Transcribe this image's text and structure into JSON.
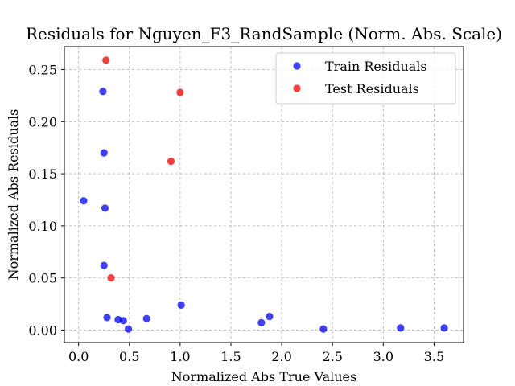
{
  "chart_data": {
    "type": "scatter",
    "title": "Residuals for Nguyen_F3_RandSample (Norm. Abs. Scale)",
    "xlabel": "Normalized Abs True Values",
    "ylabel": "Normalized Abs Residuals",
    "xlim": [
      -0.14,
      3.79
    ],
    "ylim": [
      -0.012,
      0.272
    ],
    "xticks": [
      0.0,
      0.5,
      1.0,
      1.5,
      2.0,
      2.5,
      3.0,
      3.5
    ],
    "xtick_labels": [
      "0.0",
      "0.5",
      "1.0",
      "1.5",
      "2.0",
      "2.5",
      "3.0",
      "3.5"
    ],
    "yticks": [
      0.0,
      0.05,
      0.1,
      0.15,
      0.2,
      0.25
    ],
    "ytick_labels": [
      "0.00",
      "0.05",
      "0.10",
      "0.15",
      "0.20",
      "0.25"
    ],
    "grid": true,
    "grid_style": "dashed",
    "legend_position": "top-right",
    "series": [
      {
        "name": "Train Residuals",
        "color": "#0000ee",
        "points": [
          {
            "x": 0.05,
            "y": 0.124
          },
          {
            "x": 0.24,
            "y": 0.229
          },
          {
            "x": 0.25,
            "y": 0.17
          },
          {
            "x": 0.26,
            "y": 0.117
          },
          {
            "x": 0.25,
            "y": 0.062
          },
          {
            "x": 0.28,
            "y": 0.012
          },
          {
            "x": 0.39,
            "y": 0.01
          },
          {
            "x": 0.44,
            "y": 0.009
          },
          {
            "x": 0.49,
            "y": 0.001
          },
          {
            "x": 0.67,
            "y": 0.011
          },
          {
            "x": 1.01,
            "y": 0.024
          },
          {
            "x": 1.8,
            "y": 0.007
          },
          {
            "x": 1.88,
            "y": 0.013
          },
          {
            "x": 2.41,
            "y": 0.001
          },
          {
            "x": 3.17,
            "y": 0.002
          },
          {
            "x": 3.6,
            "y": 0.002
          }
        ]
      },
      {
        "name": "Test Residuals",
        "color": "#ee0000",
        "points": [
          {
            "x": 0.27,
            "y": 0.259
          },
          {
            "x": 1.0,
            "y": 0.228
          },
          {
            "x": 0.91,
            "y": 0.162
          },
          {
            "x": 0.32,
            "y": 0.05
          }
        ]
      }
    ]
  }
}
